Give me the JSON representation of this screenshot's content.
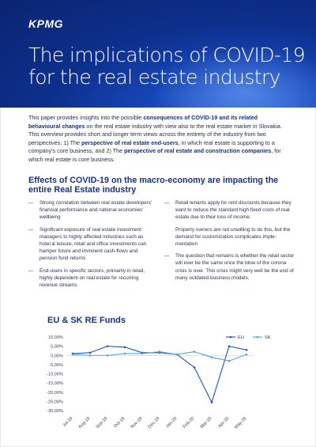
{
  "brand": {
    "logo": "KPMG"
  },
  "header": {
    "title_line1": "The implications of COVID-19",
    "title_line2": "for the real estate industry"
  },
  "intro": {
    "p1": "This paper provides insights into the possible ",
    "p1_bold": "consequences of COVID-19 and its related behavioural changes",
    "p2": " on the real estate industry with view also to the real estate market in Slovakia. This overview provides short and longer term views across the entirety of the industry from two perspectives: 1) The ",
    "p2_bold": "perspective of real estate end-users",
    "p3": ", in which real estate is supporting to a company's core business, and 2) The ",
    "p3_bold": "perspective of real estate and construction companies",
    "p4": ", for which real estate is core business."
  },
  "section1": {
    "heading": "Effects of COVID-19 on the macro-economy are impacting the entire Real Estate industry",
    "left_items": [
      "Strong correlation between real estate developers' financial performance and national economies' wellbeing",
      "Significant exposure of real estate investment managers to highly affected industries such as hotel & leisure, retail and office investments can hamper future and imminent cash-flows and pension fund returns",
      "End-users in specific sectors, primarily in retail, highly dependent on real estate for recurring revenue streams"
    ],
    "right_item1": "Retail tenants apply for rent discounts because they want to reduce the standard high fixed costs of real estate due to their loss of income.",
    "right_plain": "Property owners are not unwilling to do this, but the demand for customization complicates imple- mentation",
    "right_item2": "The question that remains is whether the retail sector will ever be the same once the blow of the corona crisis is over. This crisis might very well be the end of many outdated business models.",
    "dash": "—"
  },
  "section2": {
    "heading": "EU & SK RE Funds"
  },
  "chart_data": {
    "type": "line",
    "categories": [
      "Jul-19",
      "Aug-19",
      "Sep-19",
      "Oct-19",
      "Nov-19",
      "Dec-19",
      "Jan-20",
      "Feb-20",
      "Mar-20",
      "Apr-20",
      "May-20"
    ],
    "series": [
      {
        "name": "EU",
        "values": [
          1.0,
          1.5,
          5.0,
          4.5,
          1.5,
          1.5,
          0.5,
          -6.5,
          -25.5,
          5.0,
          3.0
        ],
        "color": "#1f4fb4"
      },
      {
        "name": "SK",
        "values": [
          0.5,
          0.0,
          0.0,
          1.0,
          1.0,
          2.0,
          0.5,
          2.0,
          -1.0,
          -3.0,
          0.5
        ],
        "color": "#4fa3e0"
      }
    ],
    "yticks": [
      "10,00%",
      "5,00%",
      "0,00%",
      "-5,00%",
      "-10,00%",
      "-15,00%",
      "-20,00%",
      "-25,00%",
      "-30,00%"
    ],
    "ylim": [
      -30,
      10
    ],
    "grid": false,
    "legend": "top-right"
  }
}
